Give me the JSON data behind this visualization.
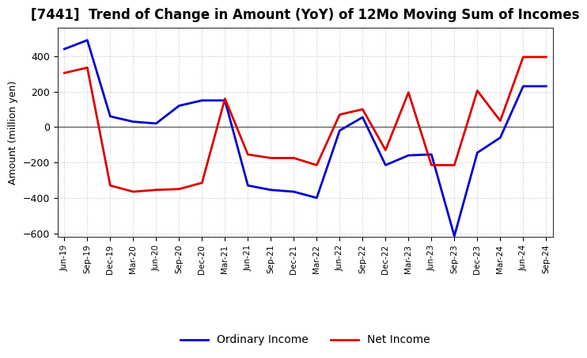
{
  "title": "[7441]  Trend of Change in Amount (YoY) of 12Mo Moving Sum of Incomes",
  "ylabel": "Amount (million yen)",
  "x_labels": [
    "Jun-19",
    "Sep-19",
    "Dec-19",
    "Mar-20",
    "Jun-20",
    "Sep-20",
    "Dec-20",
    "Mar-21",
    "Jun-21",
    "Sep-21",
    "Dec-21",
    "Mar-22",
    "Jun-22",
    "Sep-22",
    "Dec-22",
    "Mar-23",
    "Jun-23",
    "Sep-23",
    "Dec-23",
    "Mar-24",
    "Jun-24",
    "Sep-24"
  ],
  "ordinary_income": [
    440,
    490,
    60,
    30,
    20,
    120,
    150,
    150,
    -330,
    -355,
    -365,
    -400,
    -20,
    55,
    -215,
    -160,
    -155,
    -615,
    -145,
    -60,
    230,
    230
  ],
  "net_income": [
    305,
    335,
    -330,
    -365,
    -355,
    -350,
    -315,
    160,
    -155,
    -175,
    -175,
    -215,
    70,
    100,
    -130,
    195,
    -215,
    -215,
    205,
    35,
    395,
    395
  ],
  "ordinary_color": "#0000cc",
  "net_color": "#dd0000",
  "ylim": [
    -620,
    560
  ],
  "yticks": [
    -600,
    -400,
    -200,
    0,
    200,
    400
  ],
  "bg_color": "#ffffff",
  "plot_bg_color": "#ffffff",
  "grid_color": "#aaaaaa",
  "legend_labels": [
    "Ordinary Income",
    "Net Income"
  ],
  "line_width": 2.0,
  "title_fontsize": 12
}
